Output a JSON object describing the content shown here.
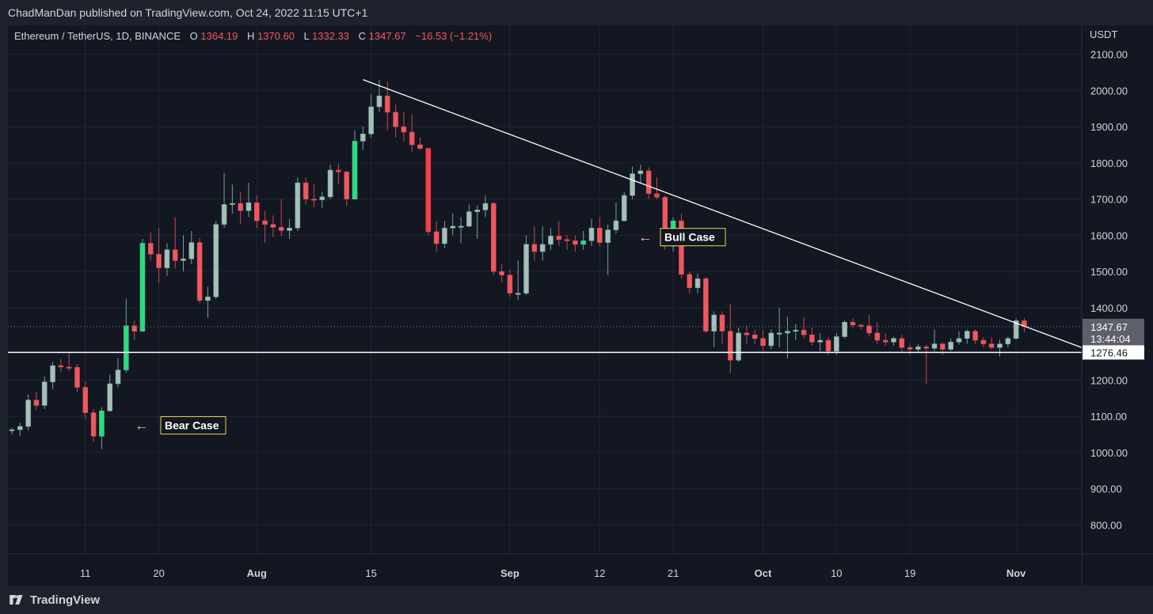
{
  "header": {
    "publisher_line": "ChadManDan published on TradingView.com, Oct 24, 2022 11:15 UTC+1"
  },
  "footer": {
    "brand": "TradingView",
    "logo_icon": "tradingview-logo-icon"
  },
  "legend": {
    "symbol": "Ethereum / TetherUS, 1D, BINANCE",
    "open_label": "O",
    "open": "1364.19",
    "high_label": "H",
    "high": "1370.60",
    "low_label": "L",
    "low": "1332.33",
    "close_label": "C",
    "close": "1347.67",
    "change": "−16.53 (−1.21%)"
  },
  "price_axis": {
    "currency": "USDT",
    "ticks": [
      2100,
      2000,
      1900,
      1800,
      1700,
      1600,
      1500,
      1400,
      1200,
      1100,
      1000,
      900,
      800
    ],
    "tick_labels": [
      "2100.00",
      "2000.00",
      "1900.00",
      "1800.00",
      "1700.00",
      "1600.00",
      "1500.00",
      "1400.00",
      "1200.00",
      "1100.00",
      "1000.00",
      "900.00",
      "800.00"
    ],
    "last_price": 1347.67,
    "last_price_label": "1347.67",
    "countdown": "13:44:04",
    "horizontal_line_price": 1276.46,
    "horizontal_line_label": "1276.46"
  },
  "time_axis": {
    "labels": [
      {
        "text": "11",
        "bold": false
      },
      {
        "text": "20",
        "bold": false
      },
      {
        "text": "Aug",
        "bold": true
      },
      {
        "text": "15",
        "bold": false
      },
      {
        "text": "Sep",
        "bold": true
      },
      {
        "text": "12",
        "bold": false
      },
      {
        "text": "21",
        "bold": false
      },
      {
        "text": "Oct",
        "bold": true
      },
      {
        "text": "10",
        "bold": false
      },
      {
        "text": "19",
        "bold": false
      },
      {
        "text": "Nov",
        "bold": true
      }
    ]
  },
  "annotations": [
    {
      "text": "Bear Case",
      "price": 1075,
      "arrow": "←"
    },
    {
      "text": "Bull Case",
      "price": 1595,
      "arrow": "←"
    }
  ],
  "colors": {
    "up": "#a7bfb8",
    "up_strong": "#22e17a",
    "down": "#f1585e",
    "down_strong": "#ff3b45",
    "wick_up": "#6fa59a",
    "wick_down": "#c24b52",
    "grid": "#222632",
    "text": "#d1d4dc",
    "legend_value": "#f1585e",
    "annotation_border": "#e8d44d",
    "arrow": "#f4b3ac"
  },
  "chart_data": {
    "type": "candlestick",
    "symbol": "Ethereum / TetherUS",
    "interval": "1D",
    "exchange": "BINANCE",
    "ylabel": "USDT",
    "ylim": [
      720,
      2180
    ],
    "grid": true,
    "candles": [
      {
        "o": 1060,
        "h": 1068,
        "l": 1050,
        "c": 1063
      },
      {
        "o": 1063,
        "h": 1082,
        "l": 1045,
        "c": 1072
      },
      {
        "o": 1072,
        "h": 1160,
        "l": 1062,
        "c": 1145
      },
      {
        "o": 1145,
        "h": 1168,
        "l": 1118,
        "c": 1130
      },
      {
        "o": 1130,
        "h": 1210,
        "l": 1120,
        "c": 1195
      },
      {
        "o": 1195,
        "h": 1250,
        "l": 1175,
        "c": 1240
      },
      {
        "o": 1240,
        "h": 1258,
        "l": 1222,
        "c": 1236
      },
      {
        "o": 1236,
        "h": 1278,
        "l": 1225,
        "c": 1235
      },
      {
        "o": 1235,
        "h": 1245,
        "l": 1168,
        "c": 1180
      },
      {
        "o": 1180,
        "h": 1196,
        "l": 1092,
        "c": 1110
      },
      {
        "o": 1110,
        "h": 1120,
        "l": 1030,
        "c": 1045
      },
      {
        "o": 1045,
        "h": 1125,
        "l": 1010,
        "c": 1115
      },
      {
        "o": 1115,
        "h": 1215,
        "l": 1112,
        "c": 1190
      },
      {
        "o": 1190,
        "h": 1260,
        "l": 1180,
        "c": 1228
      },
      {
        "o": 1228,
        "h": 1425,
        "l": 1220,
        "c": 1350
      },
      {
        "o": 1350,
        "h": 1365,
        "l": 1310,
        "c": 1335
      },
      {
        "o": 1335,
        "h": 1590,
        "l": 1333,
        "c": 1578
      },
      {
        "o": 1578,
        "h": 1608,
        "l": 1530,
        "c": 1548
      },
      {
        "o": 1548,
        "h": 1620,
        "l": 1468,
        "c": 1510
      },
      {
        "o": 1510,
        "h": 1578,
        "l": 1488,
        "c": 1560
      },
      {
        "o": 1560,
        "h": 1650,
        "l": 1508,
        "c": 1530
      },
      {
        "o": 1530,
        "h": 1600,
        "l": 1500,
        "c": 1535
      },
      {
        "o": 1535,
        "h": 1612,
        "l": 1520,
        "c": 1580
      },
      {
        "o": 1580,
        "h": 1592,
        "l": 1412,
        "c": 1420
      },
      {
        "o": 1420,
        "h": 1458,
        "l": 1372,
        "c": 1430
      },
      {
        "o": 1430,
        "h": 1640,
        "l": 1425,
        "c": 1630
      },
      {
        "o": 1630,
        "h": 1772,
        "l": 1620,
        "c": 1685
      },
      {
        "o": 1685,
        "h": 1740,
        "l": 1660,
        "c": 1688
      },
      {
        "o": 1688,
        "h": 1720,
        "l": 1630,
        "c": 1668
      },
      {
        "o": 1668,
        "h": 1745,
        "l": 1650,
        "c": 1690
      },
      {
        "o": 1690,
        "h": 1710,
        "l": 1620,
        "c": 1640
      },
      {
        "o": 1640,
        "h": 1668,
        "l": 1580,
        "c": 1630
      },
      {
        "o": 1630,
        "h": 1655,
        "l": 1595,
        "c": 1622
      },
      {
        "o": 1622,
        "h": 1700,
        "l": 1598,
        "c": 1613
      },
      {
        "o": 1613,
        "h": 1645,
        "l": 1590,
        "c": 1620
      },
      {
        "o": 1620,
        "h": 1760,
        "l": 1612,
        "c": 1745
      },
      {
        "o": 1745,
        "h": 1760,
        "l": 1685,
        "c": 1700
      },
      {
        "o": 1700,
        "h": 1742,
        "l": 1678,
        "c": 1698
      },
      {
        "o": 1698,
        "h": 1720,
        "l": 1675,
        "c": 1706
      },
      {
        "o": 1706,
        "h": 1795,
        "l": 1700,
        "c": 1780
      },
      {
        "o": 1780,
        "h": 1798,
        "l": 1740,
        "c": 1775
      },
      {
        "o": 1775,
        "h": 1778,
        "l": 1680,
        "c": 1700
      },
      {
        "o": 1700,
        "h": 1890,
        "l": 1698,
        "c": 1860
      },
      {
        "o": 1860,
        "h": 1900,
        "l": 1835,
        "c": 1880
      },
      {
        "o": 1880,
        "h": 1990,
        "l": 1870,
        "c": 1955
      },
      {
        "o": 1955,
        "h": 2030,
        "l": 1940,
        "c": 1985
      },
      {
        "o": 1985,
        "h": 2025,
        "l": 1890,
        "c": 1940
      },
      {
        "o": 1940,
        "h": 1962,
        "l": 1870,
        "c": 1900
      },
      {
        "o": 1900,
        "h": 1942,
        "l": 1860,
        "c": 1885
      },
      {
        "o": 1885,
        "h": 1935,
        "l": 1830,
        "c": 1850
      },
      {
        "o": 1850,
        "h": 1870,
        "l": 1835,
        "c": 1840
      },
      {
        "o": 1840,
        "h": 1842,
        "l": 1600,
        "c": 1610
      },
      {
        "o": 1610,
        "h": 1640,
        "l": 1555,
        "c": 1577
      },
      {
        "o": 1577,
        "h": 1640,
        "l": 1565,
        "c": 1620
      },
      {
        "o": 1620,
        "h": 1660,
        "l": 1600,
        "c": 1625
      },
      {
        "o": 1625,
        "h": 1650,
        "l": 1578,
        "c": 1625
      },
      {
        "o": 1625,
        "h": 1685,
        "l": 1622,
        "c": 1665
      },
      {
        "o": 1665,
        "h": 1683,
        "l": 1590,
        "c": 1670
      },
      {
        "o": 1670,
        "h": 1710,
        "l": 1650,
        "c": 1688
      },
      {
        "o": 1688,
        "h": 1692,
        "l": 1490,
        "c": 1500
      },
      {
        "o": 1500,
        "h": 1520,
        "l": 1470,
        "c": 1490
      },
      {
        "o": 1490,
        "h": 1505,
        "l": 1430,
        "c": 1440
      },
      {
        "o": 1440,
        "h": 1530,
        "l": 1422,
        "c": 1440
      },
      {
        "o": 1440,
        "h": 1600,
        "l": 1435,
        "c": 1575
      },
      {
        "o": 1575,
        "h": 1625,
        "l": 1530,
        "c": 1555
      },
      {
        "o": 1555,
        "h": 1625,
        "l": 1530,
        "c": 1575
      },
      {
        "o": 1575,
        "h": 1620,
        "l": 1560,
        "c": 1598
      },
      {
        "o": 1598,
        "h": 1640,
        "l": 1570,
        "c": 1588
      },
      {
        "o": 1588,
        "h": 1600,
        "l": 1560,
        "c": 1585
      },
      {
        "o": 1585,
        "h": 1600,
        "l": 1555,
        "c": 1575
      },
      {
        "o": 1575,
        "h": 1612,
        "l": 1560,
        "c": 1585
      },
      {
        "o": 1585,
        "h": 1645,
        "l": 1570,
        "c": 1620
      },
      {
        "o": 1620,
        "h": 1650,
        "l": 1570,
        "c": 1580
      },
      {
        "o": 1580,
        "h": 1630,
        "l": 1490,
        "c": 1615
      },
      {
        "o": 1615,
        "h": 1690,
        "l": 1605,
        "c": 1640
      },
      {
        "o": 1640,
        "h": 1720,
        "l": 1638,
        "c": 1710
      },
      {
        "o": 1710,
        "h": 1790,
        "l": 1700,
        "c": 1770
      },
      {
        "o": 1770,
        "h": 1795,
        "l": 1745,
        "c": 1778
      },
      {
        "o": 1778,
        "h": 1788,
        "l": 1700,
        "c": 1715
      },
      {
        "o": 1715,
        "h": 1760,
        "l": 1700,
        "c": 1705
      },
      {
        "o": 1705,
        "h": 1710,
        "l": 1560,
        "c": 1570
      },
      {
        "o": 1570,
        "h": 1650,
        "l": 1555,
        "c": 1640
      },
      {
        "o": 1640,
        "h": 1660,
        "l": 1480,
        "c": 1492
      },
      {
        "o": 1492,
        "h": 1500,
        "l": 1440,
        "c": 1455
      },
      {
        "o": 1455,
        "h": 1495,
        "l": 1440,
        "c": 1480
      },
      {
        "o": 1480,
        "h": 1485,
        "l": 1330,
        "c": 1335
      },
      {
        "o": 1335,
        "h": 1390,
        "l": 1290,
        "c": 1380
      },
      {
        "o": 1380,
        "h": 1390,
        "l": 1300,
        "c": 1335
      },
      {
        "o": 1335,
        "h": 1410,
        "l": 1220,
        "c": 1255
      },
      {
        "o": 1255,
        "h": 1345,
        "l": 1250,
        "c": 1330
      },
      {
        "o": 1330,
        "h": 1350,
        "l": 1300,
        "c": 1325
      },
      {
        "o": 1325,
        "h": 1340,
        "l": 1300,
        "c": 1315
      },
      {
        "o": 1315,
        "h": 1338,
        "l": 1280,
        "c": 1295
      },
      {
        "o": 1295,
        "h": 1340,
        "l": 1285,
        "c": 1330
      },
      {
        "o": 1330,
        "h": 1400,
        "l": 1290,
        "c": 1330
      },
      {
        "o": 1330,
        "h": 1375,
        "l": 1260,
        "c": 1335
      },
      {
        "o": 1335,
        "h": 1355,
        "l": 1310,
        "c": 1338
      },
      {
        "o": 1338,
        "h": 1375,
        "l": 1315,
        "c": 1325
      },
      {
        "o": 1325,
        "h": 1345,
        "l": 1295,
        "c": 1305
      },
      {
        "o": 1305,
        "h": 1330,
        "l": 1280,
        "c": 1310
      },
      {
        "o": 1310,
        "h": 1318,
        "l": 1270,
        "c": 1280
      },
      {
        "o": 1280,
        "h": 1330,
        "l": 1270,
        "c": 1320
      },
      {
        "o": 1320,
        "h": 1365,
        "l": 1315,
        "c": 1360
      },
      {
        "o": 1360,
        "h": 1370,
        "l": 1345,
        "c": 1352
      },
      {
        "o": 1352,
        "h": 1355,
        "l": 1340,
        "c": 1350
      },
      {
        "o": 1350,
        "h": 1380,
        "l": 1320,
        "c": 1330
      },
      {
        "o": 1330,
        "h": 1360,
        "l": 1300,
        "c": 1310
      },
      {
        "o": 1310,
        "h": 1330,
        "l": 1295,
        "c": 1305
      },
      {
        "o": 1305,
        "h": 1320,
        "l": 1295,
        "c": 1315
      },
      {
        "o": 1315,
        "h": 1325,
        "l": 1280,
        "c": 1290
      },
      {
        "o": 1290,
        "h": 1298,
        "l": 1270,
        "c": 1285
      },
      {
        "o": 1285,
        "h": 1300,
        "l": 1278,
        "c": 1292
      },
      {
        "o": 1292,
        "h": 1298,
        "l": 1190,
        "c": 1288
      },
      {
        "o": 1288,
        "h": 1340,
        "l": 1280,
        "c": 1300
      },
      {
        "o": 1300,
        "h": 1305,
        "l": 1270,
        "c": 1285
      },
      {
        "o": 1285,
        "h": 1315,
        "l": 1280,
        "c": 1305
      },
      {
        "o": 1305,
        "h": 1335,
        "l": 1298,
        "c": 1315
      },
      {
        "o": 1315,
        "h": 1340,
        "l": 1300,
        "c": 1335
      },
      {
        "o": 1335,
        "h": 1340,
        "l": 1300,
        "c": 1310
      },
      {
        "o": 1310,
        "h": 1318,
        "l": 1290,
        "c": 1300
      },
      {
        "o": 1300,
        "h": 1318,
        "l": 1285,
        "c": 1290
      },
      {
        "o": 1290,
        "h": 1312,
        "l": 1265,
        "c": 1300
      },
      {
        "o": 1300,
        "h": 1320,
        "l": 1290,
        "c": 1315
      },
      {
        "o": 1315,
        "h": 1370,
        "l": 1312,
        "c": 1364
      },
      {
        "o": 1364,
        "h": 1371,
        "l": 1332,
        "c": 1348
      }
    ],
    "strong_indices": [
      11,
      14,
      16,
      40,
      42,
      51,
      70,
      79,
      81
    ],
    "trendline": {
      "start_index": 43,
      "start_price": 2030,
      "end_price": 1290
    },
    "time_label_indices": [
      9,
      18,
      30,
      44,
      61,
      72,
      81,
      92,
      101,
      110,
      123
    ]
  }
}
